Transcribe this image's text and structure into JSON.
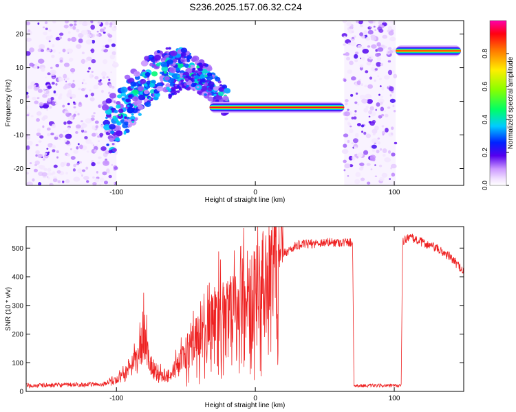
{
  "title": "S236.2025.157.06.32.C24",
  "chart_data": [
    {
      "type": "heatmap",
      "xlabel": "Height of straight line (km)",
      "ylabel": "Frequency (Hz)",
      "xlim": [
        -165,
        150
      ],
      "ylim": [
        -25,
        24
      ],
      "xticks": [
        -100,
        0,
        100
      ],
      "yticks": [
        -20,
        -10,
        0,
        10,
        20
      ],
      "colorbar": {
        "label": "Normalized spectral amplitude",
        "range": [
          0,
          1
        ],
        "ticks": [
          0.0,
          0.2,
          0.4,
          0.6,
          0.8
        ],
        "tick_labels": [
          "0.0",
          "0.2",
          "0.4",
          "0.6",
          "0.8"
        ]
      },
      "noise_regions": [
        {
          "x": [
            -165,
            -100
          ],
          "y": [
            -25,
            24
          ]
        },
        {
          "x": [
            64,
            101
          ],
          "y": [
            -25,
            24
          ]
        }
      ],
      "scatter_region": {
        "x": [
          -108,
          -20
        ],
        "center_start": -10,
        "center_end": 8
      },
      "ridges": [
        {
          "x": [
            -33,
            64
          ],
          "freq": -1.8,
          "peak": 1.0
        },
        {
          "x": [
            101,
            148
          ],
          "freq": 15.0,
          "peak": 0.95
        }
      ]
    },
    {
      "type": "line",
      "xlabel": "Height of straight line (km)",
      "ylabel": "SNR (10 * v/v)",
      "xlim": [
        -165,
        150
      ],
      "ylim": [
        0,
        575
      ],
      "xticks": [
        -100,
        0,
        100
      ],
      "yticks": [
        0,
        100,
        200,
        300,
        400,
        500
      ],
      "color": "#ee2222",
      "envelope": {
        "x": [
          -165,
          -110,
          -95,
          -85,
          -80,
          -75,
          -70,
          -60,
          -50,
          -40,
          -30,
          -20,
          -10,
          0,
          10,
          20,
          30,
          50,
          64,
          70,
          71,
          105,
          106,
          110,
          120,
          130,
          140,
          150
        ],
        "y": [
          20,
          25,
          50,
          110,
          190,
          90,
          50,
          60,
          130,
          200,
          250,
          270,
          310,
          380,
          420,
          480,
          510,
          520,
          520,
          520,
          20,
          20,
          520,
          540,
          520,
          500,
          470,
          420
        ]
      }
    }
  ]
}
